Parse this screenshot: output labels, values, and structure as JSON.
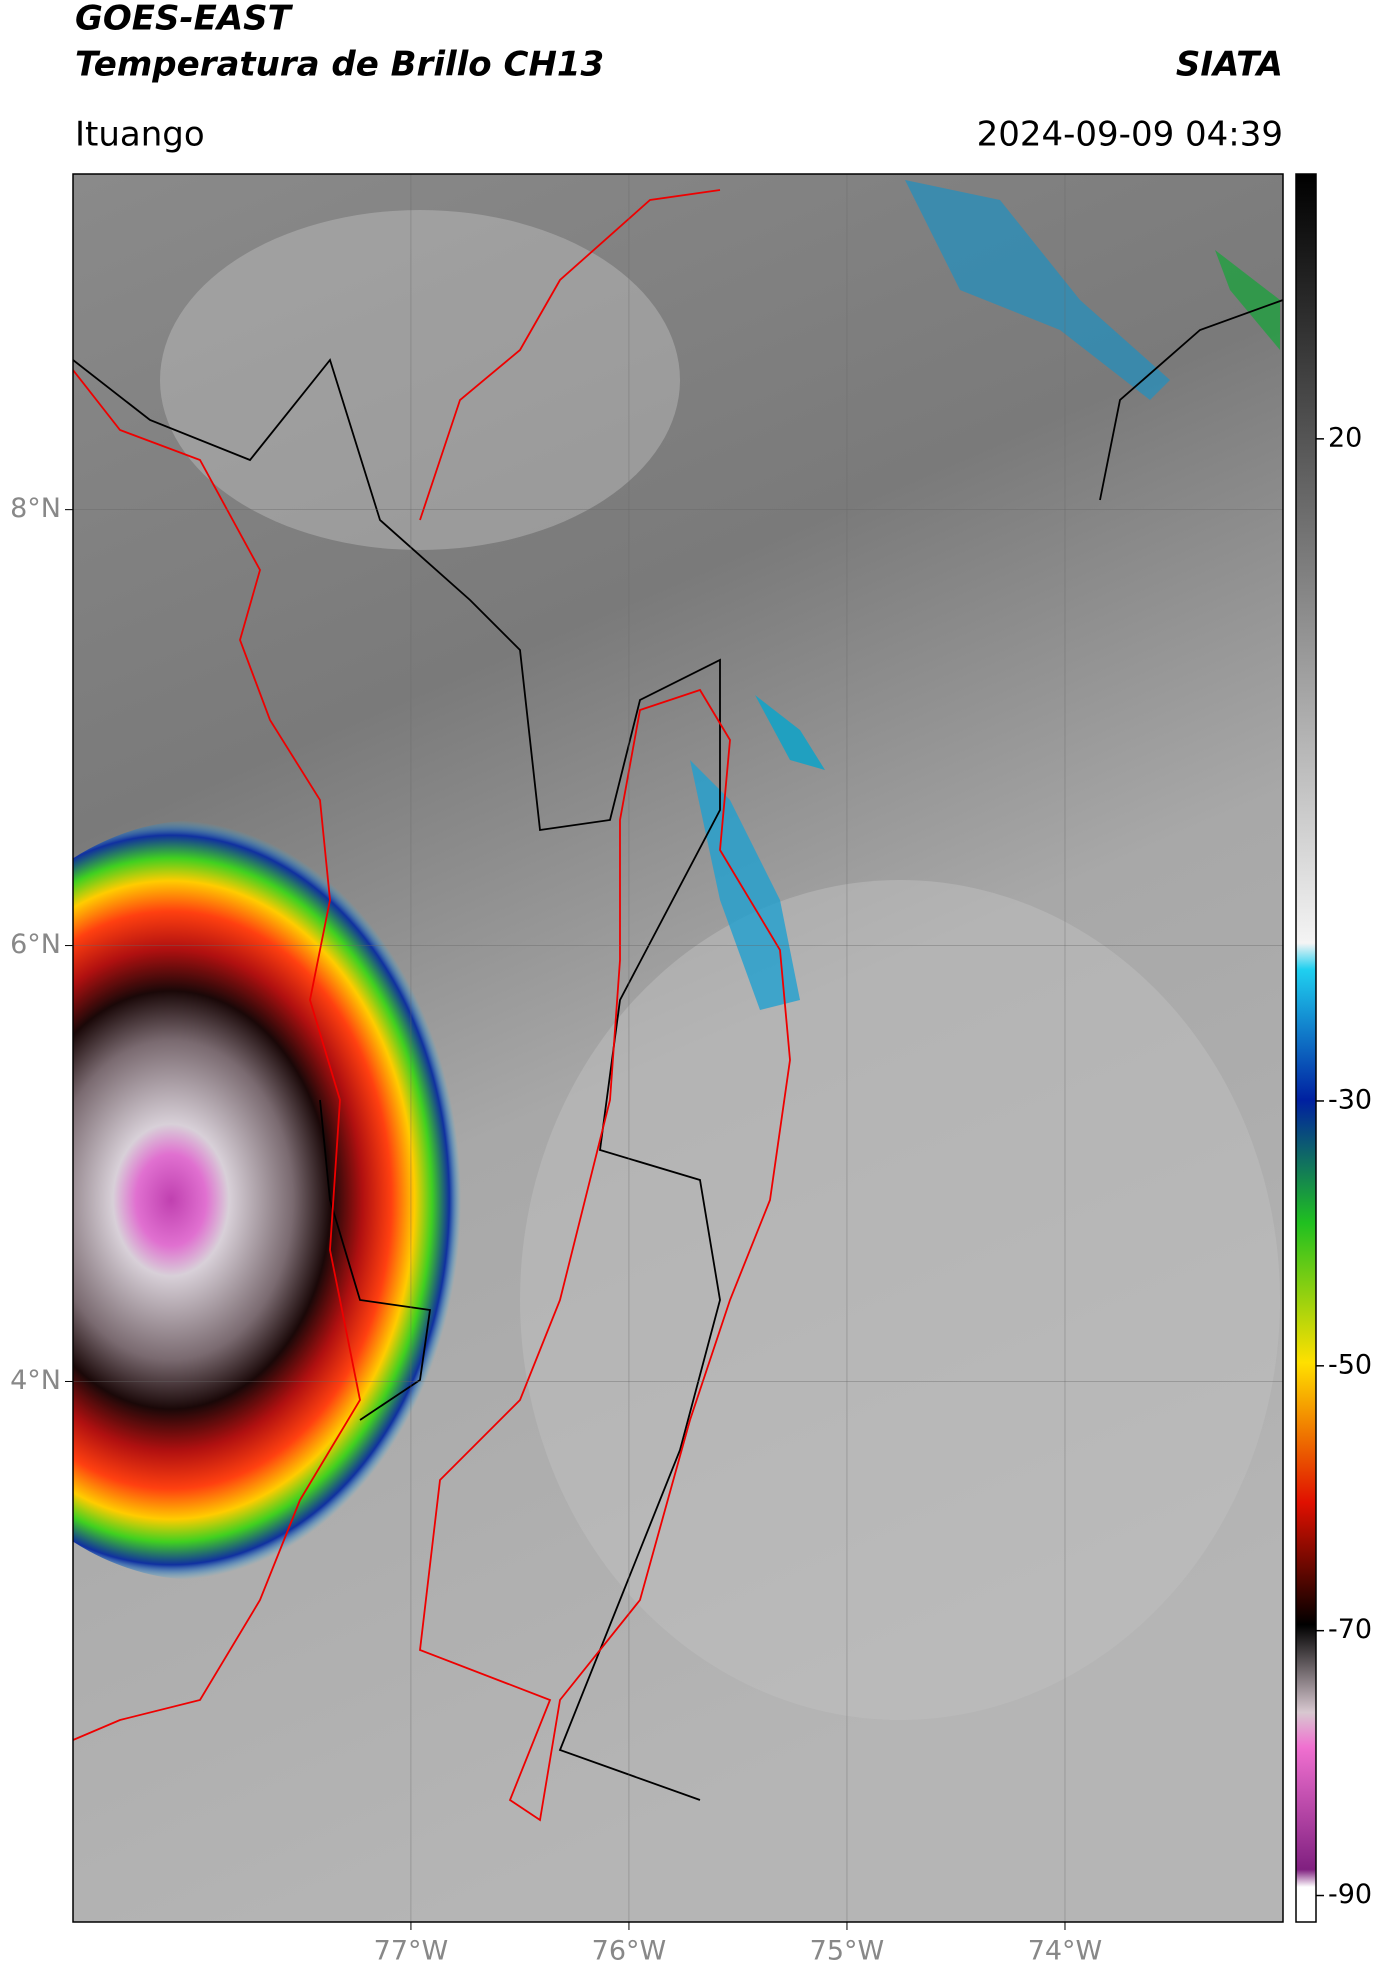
{
  "header": {
    "title": "GOES-EAST",
    "subtitle": "Temperatura de Brillo CH13",
    "brand": "SIATA",
    "location": "Ituango",
    "timestamp": "2024-09-09 04:39"
  },
  "map": {
    "xlim": [
      -78.55,
      -73.0
    ],
    "ylim": [
      1.52,
      9.54
    ],
    "xticks": [
      {
        "value": -77,
        "label": "77°W"
      },
      {
        "value": -76,
        "label": "76°W"
      },
      {
        "value": -75,
        "label": "75°W"
      },
      {
        "value": -74,
        "label": "74°W"
      }
    ],
    "yticks": [
      {
        "value": 8,
        "label": "8°N"
      },
      {
        "value": 6,
        "label": "6°N"
      },
      {
        "value": 4,
        "label": "4°N"
      }
    ],
    "grid": true
  },
  "colorbar": {
    "lim": [
      -92,
      40
    ],
    "ticks": [
      20,
      -30,
      -50,
      -70,
      -90
    ]
  }
}
